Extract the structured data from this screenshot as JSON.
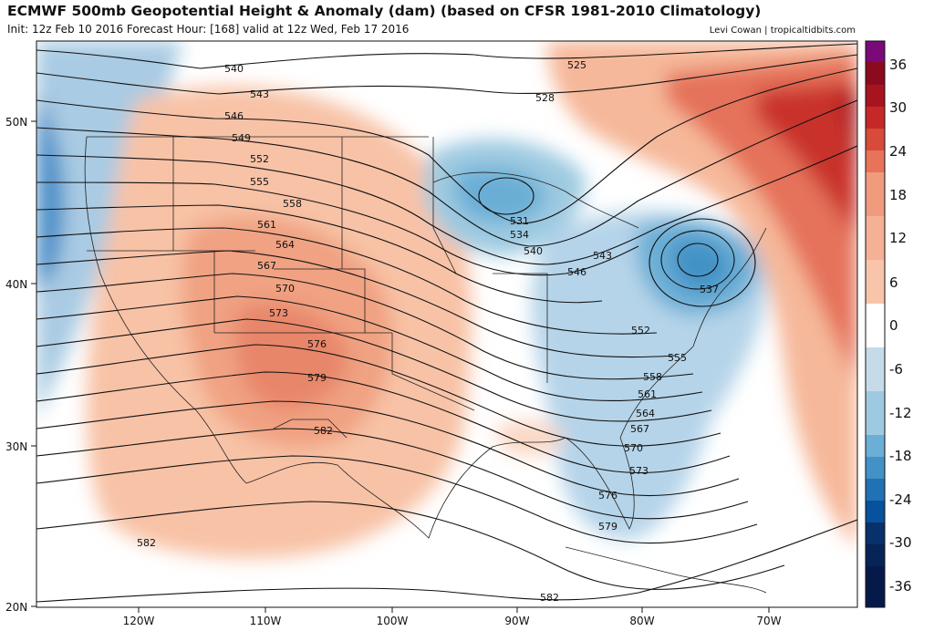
{
  "header": {
    "title": "ECMWF 500mb Geopotential Height & Anomaly (dam) (based on CFSR 1981-2010 Climatology)",
    "subtitle": "Init: 12z Feb 10 2016   Forecast Hour: [168]   valid at 12z Wed, Feb 17 2016",
    "credit": "Levi Cowan | tropicaltidbits.com"
  },
  "map": {
    "lat_labels": [
      "50N",
      "40N",
      "30N",
      "20N"
    ],
    "lon_labels": [
      "120W",
      "110W",
      "100W",
      "90W",
      "80W",
      "70W"
    ],
    "contour_labels": [
      "525",
      "528",
      "531",
      "534",
      "537",
      "540",
      "543",
      "546",
      "549",
      "552",
      "555",
      "558",
      "561",
      "564",
      "567",
      "570",
      "573",
      "576",
      "579",
      "582"
    ],
    "height_labels": [
      "540",
      "543",
      "546",
      "549",
      "552",
      "555",
      "558",
      "561",
      "564",
      "567",
      "570",
      "573",
      "576",
      "579",
      "582",
      "525",
      "528",
      "531",
      "534",
      "540",
      "543",
      "546",
      "537",
      "552",
      "555",
      "558",
      "561",
      "564",
      "567",
      "570",
      "573",
      "576",
      "579",
      "582",
      "582"
    ],
    "features": {
      "ridge": "western US warm anomaly",
      "trough": "eastern US cold anomaly",
      "low": "closed low off mid-Atlantic coast"
    }
  },
  "colorbar": {
    "labels": [
      "36",
      "30",
      "24",
      "18",
      "12",
      "6",
      "0",
      "-6",
      "-12",
      "-18",
      "-24",
      "-30",
      "-36"
    ],
    "colors": [
      "#7a0a7a",
      "#8c0a1e",
      "#a8141e",
      "#c62828",
      "#d84a3a",
      "#e6735a",
      "#f09a7e",
      "#f8c4aa",
      "#ffffff",
      "#c6dbea",
      "#9ecae1",
      "#6baed6",
      "#4292c6",
      "#2171b5",
      "#08519c",
      "#08306b",
      "#061a4a"
    ]
  }
}
